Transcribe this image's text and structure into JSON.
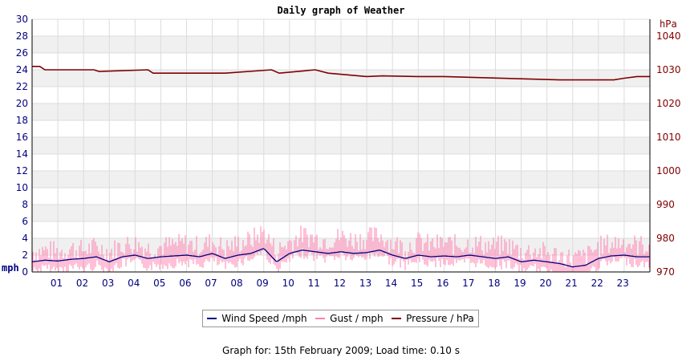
{
  "chart_data": {
    "type": "line",
    "title": "Daily graph of Weather",
    "left_axis": {
      "unit": "mph",
      "range": [
        0,
        30
      ],
      "ticks": [
        0,
        2,
        4,
        6,
        8,
        10,
        12,
        14,
        16,
        18,
        20,
        22,
        24,
        26,
        28,
        30
      ]
    },
    "right_axis": {
      "unit": "hPa",
      "range": [
        970,
        1045
      ],
      "ticks": [
        970,
        980,
        990,
        1000,
        1010,
        1020,
        1030,
        1040
      ]
    },
    "x_axis": {
      "range": [
        0,
        24
      ],
      "tick_labels": [
        "01",
        "02",
        "03",
        "04",
        "05",
        "06",
        "07",
        "08",
        "09",
        "10",
        "11",
        "12",
        "13",
        "14",
        "15",
        "16",
        "17",
        "18",
        "19",
        "20",
        "21",
        "22",
        "23"
      ]
    },
    "grid": true,
    "legend_placement": "bottom",
    "series": [
      {
        "name": "Wind Speed /mph",
        "axis": "left",
        "color": "#00007f",
        "x": [
          0,
          0.5,
          1,
          1.5,
          2,
          2.5,
          3,
          3.5,
          4,
          4.5,
          5,
          5.5,
          6,
          6.5,
          7,
          7.5,
          8,
          8.5,
          9,
          9.5,
          10,
          10.5,
          11,
          11.5,
          12,
          12.5,
          13,
          13.5,
          14,
          14.5,
          15,
          15.5,
          16,
          16.5,
          17,
          17.5,
          18,
          18.5,
          19,
          19.5,
          20,
          20.5,
          21,
          21.5,
          22,
          22.5,
          23,
          23.5
        ],
        "y": [
          1.2,
          1.4,
          1.3,
          1.5,
          1.6,
          1.8,
          1.2,
          1.8,
          2.0,
          1.6,
          1.8,
          1.9,
          2.0,
          1.8,
          2.2,
          1.6,
          2.0,
          2.2,
          2.8,
          1.2,
          2.2,
          2.6,
          2.4,
          2.2,
          2.4,
          2.2,
          2.3,
          2.6,
          2.0,
          1.6,
          2.0,
          1.8,
          1.9,
          1.8,
          2.0,
          1.8,
          1.6,
          1.8,
          1.2,
          1.4,
          1.2,
          1.0,
          0.6,
          0.8,
          1.6,
          1.9,
          2.0,
          1.8
        ]
      },
      {
        "name": "Gust / mph",
        "axis": "left",
        "color": "#ff80b0",
        "x": [
          0,
          0.5,
          1,
          1.5,
          2,
          2.5,
          3,
          3.5,
          4,
          4.5,
          5,
          5.5,
          6,
          6.5,
          7,
          7.5,
          8,
          8.5,
          9,
          9.5,
          10,
          10.5,
          11,
          11.5,
          12,
          12.5,
          13,
          13.5,
          14,
          14.5,
          15,
          15.5,
          16,
          16.5,
          17,
          17.5,
          18,
          18.5,
          19,
          19.5,
          20,
          20.5,
          21,
          21.5,
          22,
          22.5,
          23,
          23.5
        ],
        "y": [
          2.0,
          2.2,
          2.0,
          2.4,
          2.2,
          2.6,
          2.0,
          2.8,
          3.0,
          2.4,
          2.6,
          2.8,
          3.0,
          2.6,
          3.2,
          2.4,
          3.0,
          3.4,
          4.4,
          2.0,
          3.2,
          4.0,
          3.6,
          3.4,
          3.8,
          3.4,
          3.6,
          4.0,
          3.0,
          2.6,
          3.2,
          2.8,
          3.0,
          2.8,
          3.0,
          2.8,
          2.6,
          2.8,
          2.0,
          2.2,
          1.8,
          1.6,
          1.2,
          1.4,
          2.6,
          3.0,
          3.2,
          2.8
        ]
      },
      {
        "name": "Pressure / hPa",
        "axis": "right",
        "color": "#7f0000",
        "x": [
          0,
          0.3,
          0.5,
          2.4,
          2.6,
          4.5,
          4.7,
          7,
          7.5,
          9.3,
          9.6,
          11,
          11.5,
          13,
          13.6,
          15,
          16,
          20.5,
          22,
          22.6,
          23,
          23.5,
          24
        ],
        "y": [
          1031,
          1031,
          1030,
          1030,
          1029.5,
          1030,
          1029,
          1029,
          1029,
          1030,
          1029,
          1030,
          1029,
          1028,
          1028.2,
          1028,
          1028,
          1027,
          1027,
          1027,
          1027.5,
          1028,
          1028
        ]
      }
    ]
  },
  "footer": {
    "text": "Graph for: 15th February 2009; Load time: 0.10 s"
  }
}
